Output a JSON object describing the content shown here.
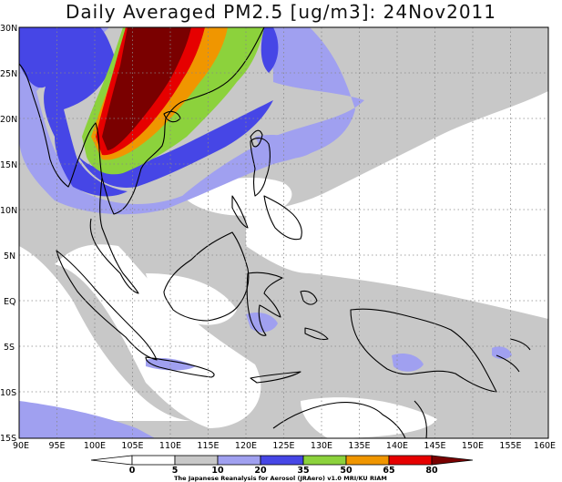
{
  "title": "Daily Averaged PM2.5 [ug/m3]: 24Nov2011",
  "credit": "The Japanese Reanalysis for Aerosol (JRAero) v1.0 MRI/KU RIAM",
  "map": {
    "lon_range": [
      90,
      160
    ],
    "lat_range": [
      -15,
      30
    ],
    "lon_ticks": [
      "90E",
      "95E",
      "100E",
      "105E",
      "110E",
      "115E",
      "120E",
      "125E",
      "130E",
      "135E",
      "140E",
      "145E",
      "150E",
      "155E",
      "160E"
    ],
    "lat_ticks": [
      "30N",
      "25N",
      "20N",
      "15N",
      "10N",
      "5N",
      "EQ",
      "5S",
      "10S",
      "15S"
    ],
    "gridlines": "dotted every 5 degrees"
  },
  "colorbar": {
    "levels": [
      "0",
      "5",
      "10",
      "20",
      "35",
      "50",
      "65",
      "80"
    ],
    "colors": [
      "#ffffff",
      "#ffffff",
      "#c8c8c8",
      "#a0a0f0",
      "#4646e6",
      "#8cd23c",
      "#f09600",
      "#e60000",
      "#7a0000"
    ]
  }
}
